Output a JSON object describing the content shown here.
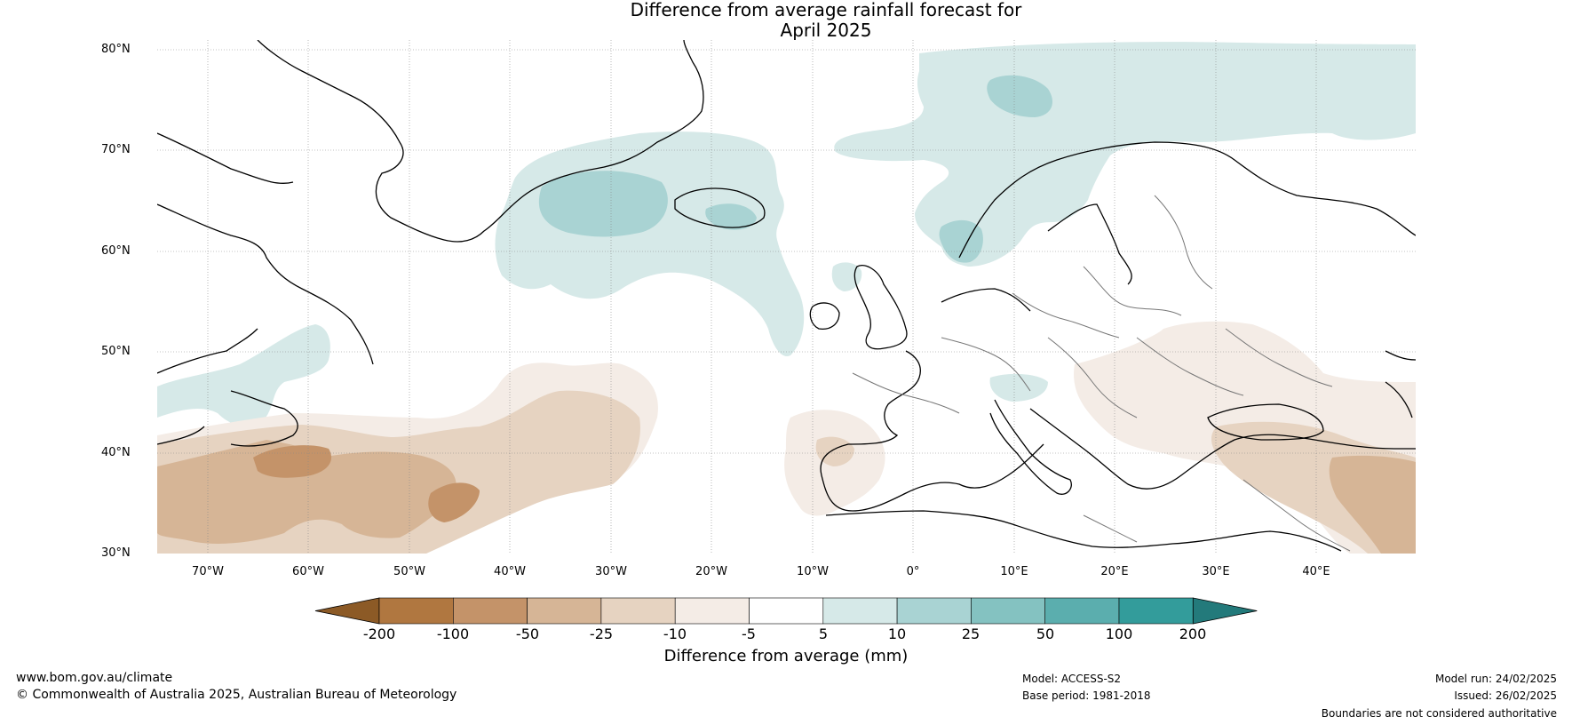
{
  "title": {
    "line1": "Difference from average rainfall forecast for",
    "line2": "April 2025"
  },
  "map": {
    "lat_labels": [
      "80°N",
      "70°N",
      "60°N",
      "50°N",
      "40°N",
      "30°N"
    ],
    "lon_labels": [
      "70°W",
      "60°W",
      "50°W",
      "40°W",
      "30°W",
      "20°W",
      "10°W",
      "0°",
      "10°E",
      "20°E",
      "30°E",
      "40°E"
    ],
    "extent": {
      "lon": [
        -75,
        50
      ],
      "lat": [
        30,
        81
      ]
    }
  },
  "colorbar": {
    "title": "Difference from average (mm)",
    "ticks": [
      "-200",
      "-100",
      "-50",
      "-25",
      "-10",
      "-5",
      "5",
      "10",
      "25",
      "50",
      "100",
      "200"
    ],
    "colors": [
      "#8c5a26",
      "#b07740",
      "#c49369",
      "#d6b596",
      "#e6d3c1",
      "#f4ece6",
      "#ffffff",
      "#d6e9e8",
      "#a9d3d3",
      "#84c2c1",
      "#5baeae",
      "#339c9b",
      "#237a7b"
    ]
  },
  "footer": {
    "website": "www.bom.gov.au/climate",
    "copyright": "© Commonwealth of Australia 2025, Australian Bureau of Meteorology",
    "model": "Model: ACCESS-S2",
    "base_period": "Base period: 1981-2018",
    "model_run": "Model run: 24/02/2025",
    "issued": "Issued: 26/02/2025",
    "disclaimer": "Boundaries are not considered authoritative"
  }
}
